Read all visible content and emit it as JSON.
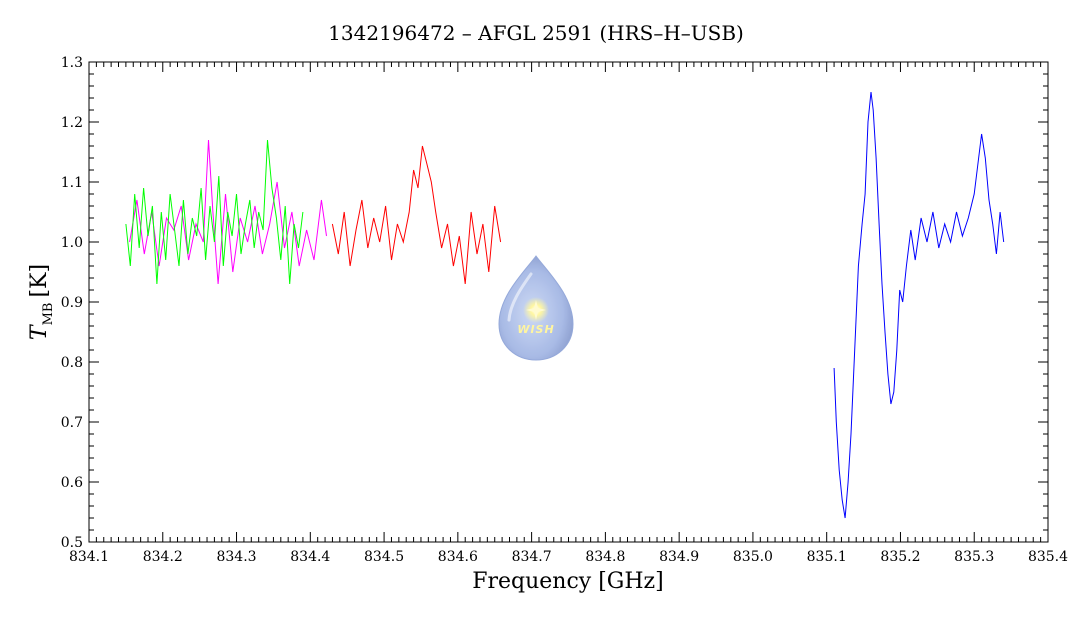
{
  "chart_data": {
    "type": "line",
    "title": "1342196472 – AFGL 2591 (HRS–H–USB)",
    "xlabel": "Frequency [GHz]",
    "ylabel_main": "T",
    "ylabel_sub": "MB",
    "ylabel_unit": "[K]",
    "xlim": [
      834.1,
      835.4
    ],
    "ylim": [
      0.5,
      1.3
    ],
    "x_ticks": [
      "834.1",
      "834.2",
      "834.3",
      "834.4",
      "834.5",
      "834.6",
      "834.7",
      "834.8",
      "834.9",
      "835.0",
      "835.1",
      "835.2",
      "835.3",
      "835.4"
    ],
    "y_ticks": [
      "0.5",
      "0.6",
      "0.7",
      "0.8",
      "0.9",
      "1.0",
      "1.1",
      "1.2",
      "1.3"
    ],
    "logo_text": "WISH",
    "series": [
      {
        "color": "#ff00ff",
        "x": [
          834.155,
          834.165,
          834.175,
          834.185,
          834.195,
          834.205,
          834.215,
          834.225,
          834.235,
          834.245,
          834.255,
          834.262,
          834.268,
          834.275,
          834.285,
          834.295,
          834.305,
          834.315,
          834.325,
          834.335,
          834.345,
          834.355,
          834.365,
          834.375,
          834.385,
          834.395,
          834.405,
          834.415,
          834.422
        ],
        "y": [
          1.0,
          1.07,
          0.98,
          1.05,
          0.96,
          1.04,
          1.02,
          1.06,
          0.97,
          1.03,
          1.0,
          1.17,
          1.05,
          0.93,
          1.08,
          0.95,
          1.04,
          1.0,
          1.06,
          0.98,
          1.03,
          1.1,
          0.99,
          1.05,
          0.96,
          1.02,
          0.97,
          1.07,
          1.01
        ]
      },
      {
        "color": "#00ff00",
        "x": [
          834.15,
          834.156,
          834.162,
          834.168,
          834.174,
          834.18,
          834.186,
          834.192,
          834.198,
          834.204,
          834.21,
          834.216,
          834.222,
          834.228,
          834.234,
          834.24,
          834.246,
          834.252,
          834.258,
          834.264,
          834.27,
          834.276,
          834.282,
          834.288,
          834.294,
          834.3,
          834.306,
          834.312,
          834.318,
          834.324,
          834.33,
          834.336,
          834.342,
          834.348,
          834.354,
          834.36,
          834.366,
          834.372,
          834.378,
          834.384,
          834.39
        ],
        "y": [
          1.03,
          0.96,
          1.08,
          0.99,
          1.09,
          1.01,
          1.06,
          0.93,
          1.05,
          0.97,
          1.08,
          1.02,
          0.96,
          1.07,
          0.98,
          1.04,
          1.01,
          1.09,
          0.97,
          1.06,
          1.0,
          1.11,
          0.96,
          1.05,
          1.01,
          1.08,
          0.98,
          1.03,
          1.07,
          0.99,
          1.05,
          1.02,
          1.17,
          1.09,
          1.04,
          0.97,
          1.06,
          0.93,
          1.03,
          0.99,
          1.05
        ]
      },
      {
        "color": "#ff0000",
        "x": [
          834.43,
          834.438,
          834.446,
          834.454,
          834.462,
          834.47,
          834.478,
          834.486,
          834.494,
          834.502,
          834.51,
          834.518,
          834.526,
          834.534,
          834.54,
          834.546,
          834.552,
          834.558,
          834.564,
          834.57,
          834.578,
          834.586,
          834.594,
          834.602,
          834.61,
          834.618,
          834.626,
          834.634,
          834.642,
          834.65,
          834.658
        ],
        "y": [
          1.03,
          0.98,
          1.05,
          0.96,
          1.02,
          1.07,
          0.99,
          1.04,
          1.0,
          1.06,
          0.97,
          1.03,
          1.0,
          1.05,
          1.12,
          1.09,
          1.16,
          1.13,
          1.1,
          1.05,
          0.99,
          1.03,
          0.96,
          1.01,
          0.93,
          1.05,
          0.98,
          1.03,
          0.95,
          1.06,
          1.0
        ]
      },
      {
        "color": "#0000ff",
        "x": [
          835.11,
          835.113,
          835.117,
          835.121,
          835.125,
          835.129,
          835.133,
          835.138,
          835.143,
          835.148,
          835.152,
          835.156,
          835.16,
          835.163,
          835.167,
          835.171,
          835.175,
          835.179,
          835.183,
          835.187,
          835.191,
          835.195,
          835.199,
          835.203,
          835.208,
          835.214,
          835.22,
          835.228,
          835.236,
          835.244,
          835.252,
          835.26,
          835.268,
          835.276,
          835.284,
          835.292,
          835.3,
          835.305,
          835.31,
          835.315,
          835.32,
          835.325,
          835.33,
          835.335,
          835.34
        ],
        "y": [
          0.79,
          0.7,
          0.62,
          0.57,
          0.54,
          0.6,
          0.68,
          0.82,
          0.96,
          1.03,
          1.08,
          1.2,
          1.25,
          1.22,
          1.14,
          1.03,
          0.93,
          0.85,
          0.78,
          0.73,
          0.75,
          0.82,
          0.92,
          0.9,
          0.96,
          1.02,
          0.97,
          1.04,
          1.0,
          1.05,
          0.99,
          1.03,
          1.0,
          1.05,
          1.01,
          1.04,
          1.08,
          1.13,
          1.18,
          1.14,
          1.07,
          1.03,
          0.98,
          1.05,
          1.0
        ]
      }
    ]
  }
}
